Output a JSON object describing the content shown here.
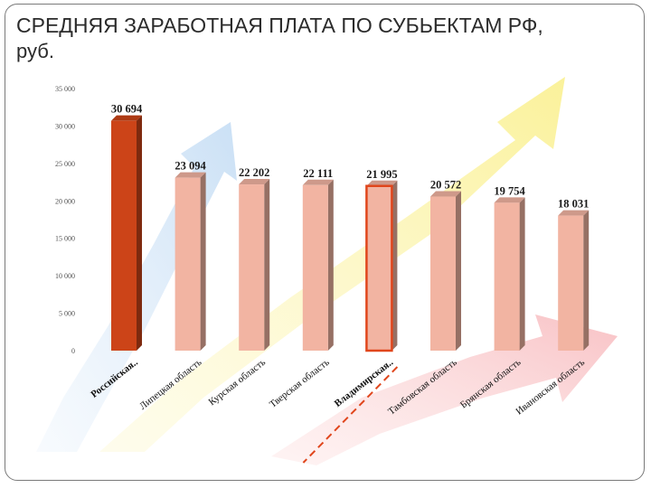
{
  "title_line1": "СРЕДНЯЯ ЗАРАБОТНАЯ ПЛАТА ПО СУБЬЕКТАМ РФ,",
  "title_line2": "руб.",
  "chart_data": {
    "type": "bar",
    "title": "СРЕДНЯЯ ЗАРАБОТНАЯ ПЛАТА ПО СУБЬЕКТАМ РФ, руб.",
    "categories": [
      "Российская..",
      "Липецкая область",
      "Курская область",
      "Тверская область",
      "Владимирская..",
      "Тамбовская область",
      "Брянская область",
      "Ивановская область"
    ],
    "values": [
      30694,
      23094,
      22202,
      22111,
      21995,
      20572,
      19754,
      18031
    ],
    "value_labels": [
      "30 694",
      "23 094",
      "22 202",
      "22 111",
      "21 995",
      "20 572",
      "19 754",
      "18 031"
    ],
    "yticks": [
      "0",
      "5 000",
      "10 000",
      "15 000",
      "20 000",
      "25 000",
      "30 000",
      "35 000"
    ],
    "ylim": [
      0,
      35000
    ],
    "xlabel": "",
    "ylabel": "",
    "grid": false,
    "legend": "none",
    "highlight_index": 0,
    "outlined_index": 4,
    "colors": {
      "highlight": "#cc4418",
      "normal": "#f2b4a2",
      "outline": "#e0461c"
    }
  }
}
